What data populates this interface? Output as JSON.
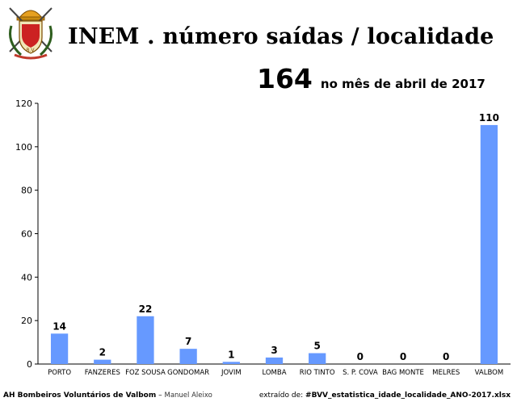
{
  "header": {
    "title": "INEM . número saídas / localidade",
    "total": "164",
    "total_caption": "no mês de abril de 2017",
    "logo_text": "B.V."
  },
  "footer": {
    "organization": "AH Bombeiros Voluntários de Valbom",
    "separator": " – ",
    "author": "Manuel Aleixo",
    "source_prefix": "extraído de: ",
    "source_file": "#BVV_estatistica_idade_localidade_ANO-2017.xlsx"
  },
  "chart_data": {
    "type": "bar",
    "title": "INEM . número saídas / localidade",
    "categories": [
      "PORTO",
      "FANZERES",
      "FOZ SOUSA",
      "GONDOMAR",
      "JOVIM",
      "LOMBA",
      "RIO TINTO",
      "S. P. COVA",
      "BAG MONTE",
      "MELRES",
      "VALBOM"
    ],
    "values": [
      14,
      2,
      22,
      7,
      1,
      3,
      5,
      0,
      0,
      0,
      110
    ],
    "ylim": [
      0,
      120
    ],
    "yticks": [
      0,
      20,
      40,
      60,
      80,
      100,
      120
    ],
    "grid": false,
    "legend": "none",
    "bar_color": "#6699ff"
  }
}
